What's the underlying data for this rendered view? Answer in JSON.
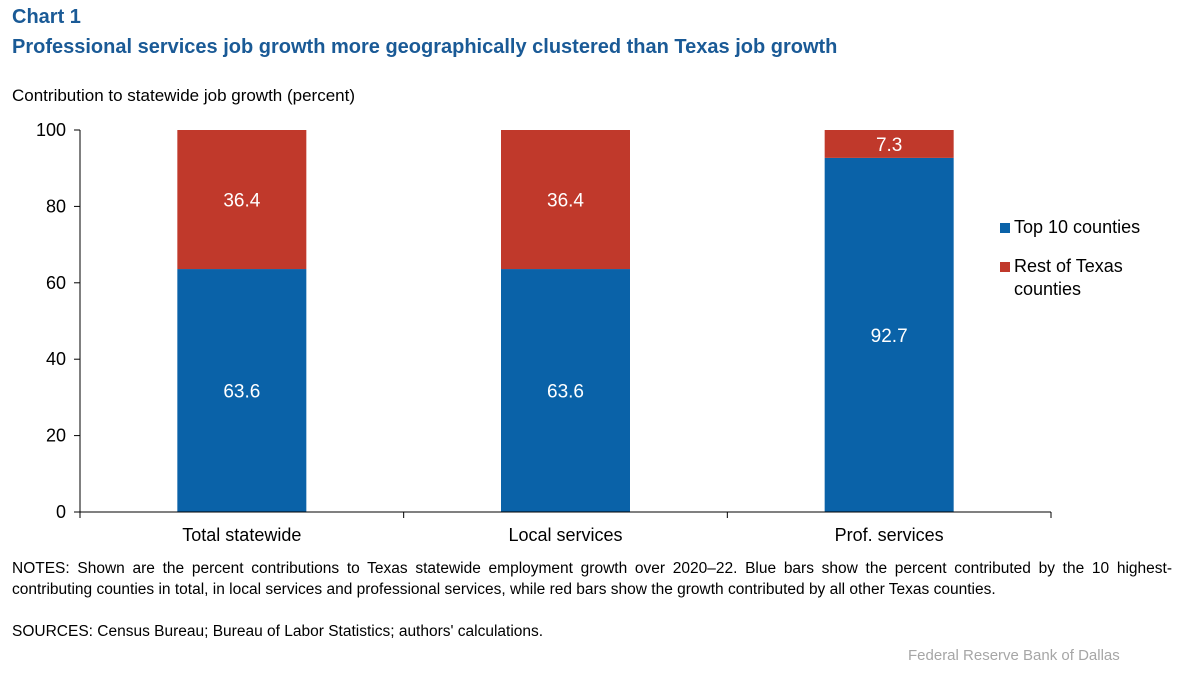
{
  "chart_label": "Chart 1",
  "title": "Professional services job growth more geographically clustered than Texas job growth",
  "y_axis_title": "Contribution  to statewide job growth (percent)",
  "legend": [
    {
      "label": "Top 10 counties",
      "color": "#0a62a8"
    },
    {
      "label": "Rest of Texas counties",
      "color": "#c0392b"
    }
  ],
  "notes": "NOTES: Shown are the percent contributions to Texas statewide employment  growth over 2020–22. Blue bars show the percent contributed by the 10 highest-contributing counties in total, in local services and professional services, while red bars show the growth contributed by all other Texas counties.",
  "sources": "SOURCES: Census Bureau; Bureau of Labor Statistics; authors' calculations.",
  "credit": "Federal Reserve  Bank of Dallas",
  "chart_data": {
    "type": "bar",
    "stacked": true,
    "categories": [
      "Total statewide",
      "Local services",
      "Prof. services"
    ],
    "series": [
      {
        "name": "Top 10 counties",
        "color": "#0a62a8",
        "values": [
          63.6,
          63.6,
          92.7
        ],
        "labels": [
          "63.6",
          "63.6",
          "92.7"
        ]
      },
      {
        "name": "Rest of Texas counties",
        "color": "#c0392b",
        "values": [
          36.4,
          36.4,
          7.3
        ],
        "labels": [
          "36.4",
          "36.4",
          "7.3"
        ]
      }
    ],
    "ylim": [
      0,
      100
    ],
    "yticks": [
      0,
      20,
      40,
      60,
      80,
      100
    ],
    "grid": false,
    "legend_position": "right"
  }
}
